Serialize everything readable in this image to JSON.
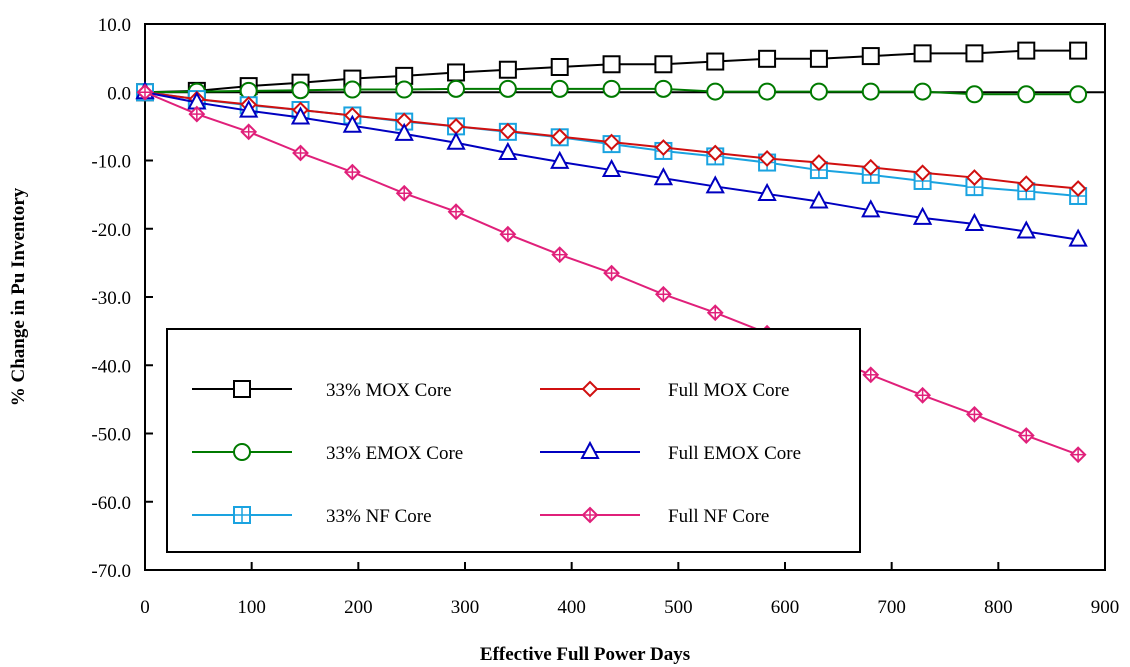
{
  "chart_data": {
    "type": "line",
    "title": "",
    "xlabel": "Effective Full Power Days",
    "ylabel": "% Change in Pu Inventory",
    "xlim": [
      0,
      900
    ],
    "ylim": [
      -70,
      10
    ],
    "x_ticks": [
      "0",
      "100",
      "200",
      "300",
      "400",
      "500",
      "600",
      "700",
      "800",
      "900"
    ],
    "y_ticks": [
      "10.0",
      "0.0",
      "-10.0",
      "-20.0",
      "-30.0",
      "-40.0",
      "-50.0",
      "-60.0",
      "-70.0"
    ],
    "grid": false,
    "legend_position": "bottom-left",
    "x": [
      0,
      48.6,
      97.2,
      145.8,
      194.4,
      243,
      291.6,
      340.2,
      388.8,
      437.4,
      486,
      534.6,
      583.2,
      631.8,
      680.4,
      729,
      777.6,
      826.2,
      874.8
    ],
    "series": [
      {
        "name": "33% MOX Core",
        "color": "#000000",
        "marker": "square",
        "values": [
          0,
          0.2,
          0.9,
          1.4,
          2.0,
          2.4,
          2.9,
          3.3,
          3.7,
          4.1,
          4.1,
          4.5,
          4.9,
          4.9,
          5.3,
          5.7,
          5.7,
          6.1,
          6.1
        ]
      },
      {
        "name": "33% EMOX Core",
        "color": "#007a00",
        "marker": "circle",
        "values": [
          0,
          0.1,
          0.2,
          0.3,
          0.4,
          0.4,
          0.5,
          0.5,
          0.5,
          0.5,
          0.5,
          0.1,
          0.1,
          0.1,
          0.1,
          0.1,
          -0.3,
          -0.3,
          -0.3
        ]
      },
      {
        "name": "33% NF Core",
        "color": "#1aa3e0",
        "marker": "square-plus",
        "values": [
          0,
          -1.0,
          -1.9,
          -2.6,
          -3.4,
          -4.3,
          -5.0,
          -5.8,
          -6.6,
          -7.6,
          -8.6,
          -9.4,
          -10.3,
          -11.4,
          -12.1,
          -13.0,
          -13.9,
          -14.5,
          -15.2
        ]
      },
      {
        "name": "Full MOX Core",
        "color": "#d01010",
        "marker": "diamond",
        "values": [
          0,
          -1.0,
          -1.8,
          -2.6,
          -3.4,
          -4.2,
          -5.0,
          -5.7,
          -6.5,
          -7.3,
          -8.1,
          -8.9,
          -9.7,
          -10.3,
          -11.0,
          -11.8,
          -12.5,
          -13.4,
          -14.1
        ]
      },
      {
        "name": "Full EMOX Core",
        "color": "#0000c0",
        "marker": "triangle",
        "values": [
          0,
          -1.5,
          -2.7,
          -3.7,
          -4.9,
          -6.1,
          -7.4,
          -8.9,
          -10.2,
          -11.4,
          -12.6,
          -13.8,
          -14.9,
          -16.0,
          -17.3,
          -18.4,
          -19.3,
          -20.4,
          -21.6
        ]
      },
      {
        "name": "Full NF Core",
        "color": "#e0207a",
        "marker": "diamond-plus",
        "values": [
          0,
          -3.2,
          -5.8,
          -8.9,
          -11.7,
          -14.8,
          -17.5,
          -20.8,
          -23.8,
          -26.5,
          -29.6,
          -32.3,
          -35.3,
          -38.2,
          -41.4,
          -44.4,
          -47.2,
          -50.3,
          -53.1
        ]
      }
    ]
  }
}
